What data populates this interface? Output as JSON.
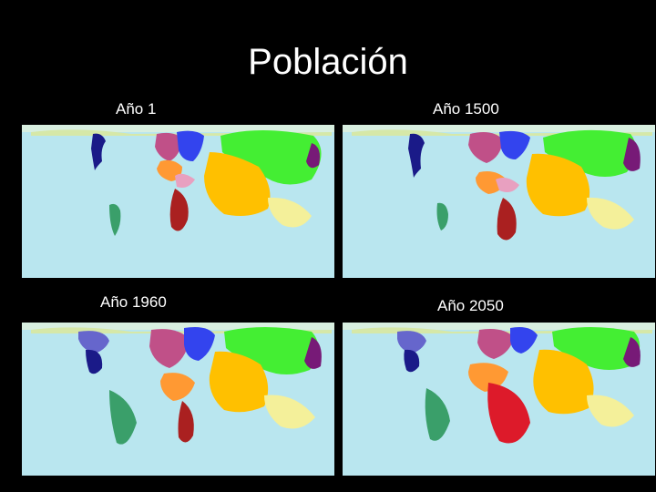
{
  "slide": {
    "title": "Población"
  },
  "panels": [
    {
      "label": "Año 1"
    },
    {
      "label": "Año 1500"
    },
    {
      "label": "Año 1960"
    },
    {
      "label": "Año 2050"
    }
  ],
  "colors": {
    "background": "#000000",
    "ocean": "#b9e6ef",
    "east_asia": "#44ee33",
    "south_asia": "#ffc000",
    "europe": "#c05088",
    "russia": "#3344ee",
    "north_america": "#1a1a88",
    "latin_america": "#3a9f6a",
    "africa": "#aa2020",
    "middle_east": "#ff9933",
    "southeast_asia": "#f4f09a",
    "japan": "#771a77"
  }
}
